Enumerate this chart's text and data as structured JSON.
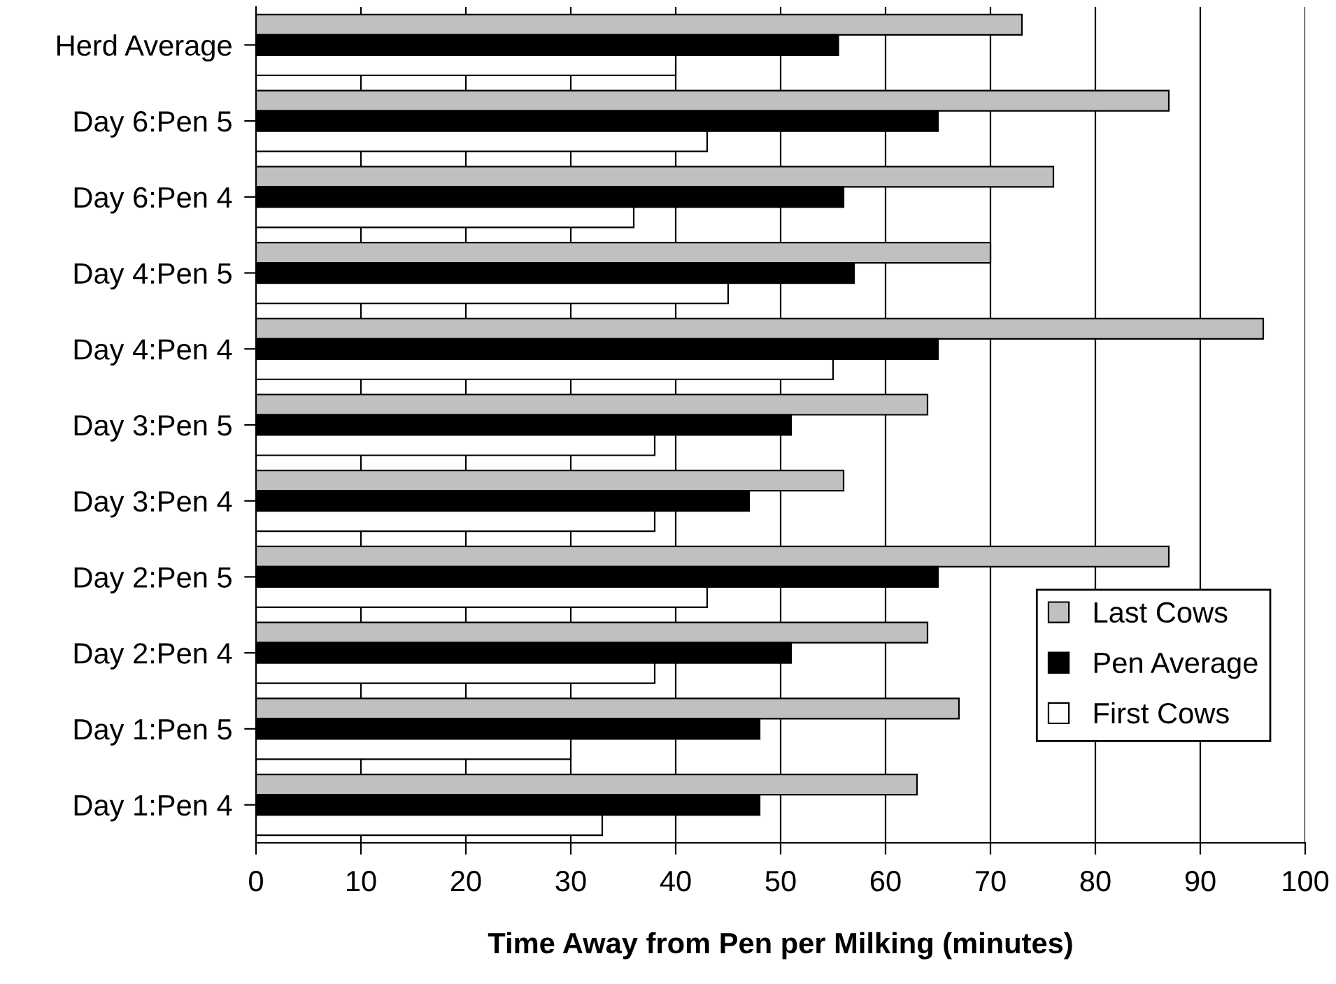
{
  "chart_data": {
    "type": "bar",
    "orientation": "horizontal",
    "xlabel": "Time Away from Pen per Milking (minutes)",
    "categories": [
      "Herd Average",
      "Day 6:Pen 5",
      "Day 6:Pen 4",
      "Day 4:Pen 5",
      "Day 4:Pen 4",
      "Day 3:Pen 5",
      "Day 3:Pen 4",
      "Day 2:Pen 5",
      "Day 2:Pen 4",
      "Day 1:Pen 5",
      "Day 1:Pen 4"
    ],
    "series": [
      {
        "name": "Last Cows",
        "color": "#c0c0c0",
        "values": [
          73,
          87,
          76,
          70,
          96,
          64,
          56,
          87,
          64,
          67,
          63
        ]
      },
      {
        "name": "Pen Average",
        "color": "#000000",
        "values": [
          55.5,
          65,
          56,
          57,
          65,
          51,
          47,
          65,
          51,
          48,
          48
        ]
      },
      {
        "name": "First Cows",
        "color": "#ffffff",
        "values": [
          40,
          43,
          36,
          45,
          55,
          38,
          38,
          43,
          38,
          30,
          33
        ]
      }
    ],
    "xlim": [
      0,
      100
    ],
    "xticks": [
      0,
      10,
      20,
      30,
      40,
      50,
      60,
      70,
      80,
      90,
      100
    ],
    "grid": "x",
    "legend": "bottom right"
  }
}
